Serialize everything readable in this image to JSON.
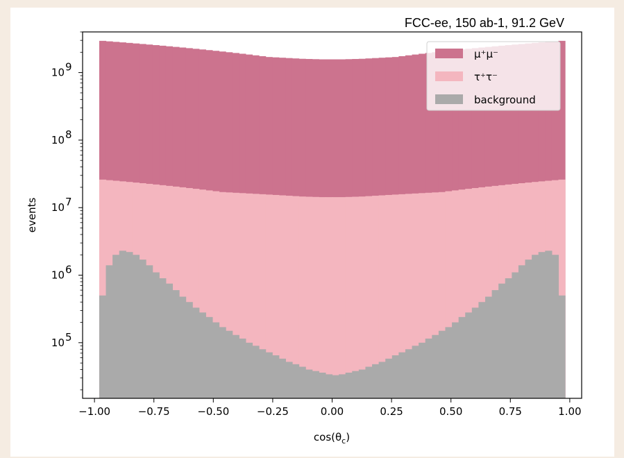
{
  "chart_data": {
    "type": "histogram-stacked",
    "annotation": "FCC-ee, 150 ab-1, 91.2 GeV",
    "xlabel": "cos(θ",
    "xlabel_sub": "c",
    "xlabel_close": ")",
    "ylabel": "events",
    "xlim": [
      -1.05,
      1.05
    ],
    "ylim": [
      15000,
      4000000000
    ],
    "yscale": "log",
    "bin_range": [
      -0.98,
      0.98
    ],
    "xticks": [
      -1.0,
      -0.75,
      -0.5,
      -0.25,
      0.0,
      0.25,
      0.5,
      0.75,
      1.0
    ],
    "xtick_labels": [
      "−1.00",
      "−0.75",
      "−0.50",
      "−0.25",
      "0.00",
      "0.25",
      "0.50",
      "0.75",
      "1.00"
    ],
    "yticks": [
      {
        "value": 100000,
        "base": "10",
        "exp": "5"
      },
      {
        "value": 1000000,
        "base": "10",
        "exp": "6"
      },
      {
        "value": 10000000,
        "base": "10",
        "exp": "7"
      },
      {
        "value": 100000000,
        "base": "10",
        "exp": "8"
      },
      {
        "value": 1000000000,
        "base": "10",
        "exp": "9"
      }
    ],
    "legend_position": "top-right",
    "series": [
      {
        "name": "μ⁺μ⁻",
        "color": "#cc738e",
        "values": [
          2950000000,
          2900000000,
          2850000000,
          2800000000,
          2750000000,
          2700000000,
          2650000000,
          2600000000,
          2550000000,
          2500000000,
          2450000000,
          2400000000,
          2350000000,
          2300000000,
          2250000000,
          2200000000,
          2150000000,
          2100000000,
          2050000000,
          2000000000,
          1950000000,
          1900000000,
          1850000000,
          1800000000,
          1750000000,
          1700000000,
          1680000000,
          1660000000,
          1640000000,
          1620000000,
          1600000000,
          1590000000,
          1580000000,
          1570000000,
          1570000000,
          1570000000,
          1570000000,
          1580000000,
          1590000000,
          1600000000,
          1620000000,
          1640000000,
          1660000000,
          1680000000,
          1700000000,
          1750000000,
          1800000000,
          1850000000,
          1900000000,
          1950000000,
          2000000000,
          2050000000,
          2100000000,
          2150000000,
          2200000000,
          2250000000,
          2300000000,
          2350000000,
          2400000000,
          2450000000,
          2500000000,
          2550000000,
          2600000000,
          2650000000,
          2700000000,
          2750000000,
          2800000000,
          2850000000,
          2900000000,
          2950000000
        ]
      },
      {
        "name": "τ⁺τ⁻",
        "color": "#f4b6bf",
        "values": [
          26000000,
          25500000,
          25000000,
          24500000,
          24000000,
          23500000,
          23000000,
          22500000,
          22000000,
          21500000,
          21000000,
          20500000,
          20000000,
          19500000,
          19000000,
          18500000,
          18000000,
          17500000,
          17000000,
          16800000,
          16600000,
          16400000,
          16200000,
          16000000,
          15800000,
          15600000,
          15400000,
          15200000,
          15000000,
          14800000,
          14600000,
          14500000,
          14400000,
          14300000,
          14300000,
          14300000,
          14300000,
          14400000,
          14500000,
          14600000,
          14800000,
          15000000,
          15200000,
          15400000,
          15600000,
          15800000,
          16000000,
          16200000,
          16400000,
          16600000,
          16800000,
          17000000,
          17500000,
          18000000,
          18500000,
          19000000,
          19500000,
          20000000,
          20500000,
          21000000,
          21500000,
          22000000,
          22500000,
          23000000,
          23500000,
          24000000,
          24500000,
          25000000,
          25500000,
          26000000
        ]
      },
      {
        "name": "background",
        "color": "#aaaaaa",
        "values": [
          500000,
          1400000,
          2000000,
          2300000,
          2200000,
          2000000,
          1700000,
          1400000,
          1100000,
          900000,
          750000,
          600000,
          480000,
          400000,
          330000,
          280000,
          240000,
          200000,
          170000,
          150000,
          130000,
          115000,
          100000,
          90000,
          80000,
          72000,
          65000,
          58000,
          52000,
          48000,
          44000,
          40000,
          38000,
          36000,
          34000,
          33000,
          34000,
          36000,
          38000,
          40000,
          44000,
          48000,
          52000,
          58000,
          65000,
          72000,
          80000,
          90000,
          100000,
          115000,
          130000,
          150000,
          170000,
          200000,
          240000,
          280000,
          330000,
          400000,
          480000,
          600000,
          750000,
          900000,
          1100000,
          1400000,
          1700000,
          2000000,
          2200000,
          2300000,
          2000000,
          500000
        ]
      }
    ]
  }
}
